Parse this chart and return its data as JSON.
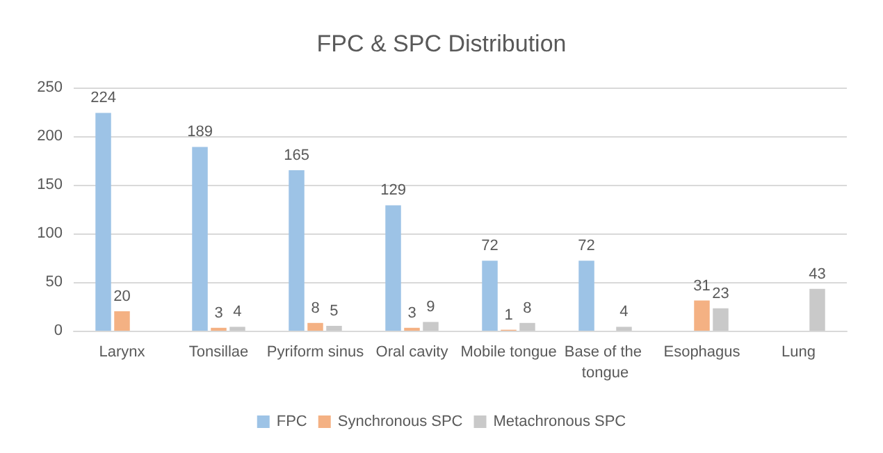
{
  "chart_data": {
    "type": "bar",
    "title": "FPC & SPC Distribution",
    "categories": [
      "Larynx",
      "Tonsillae",
      "Pyriform sinus",
      "Oral cavity",
      "Mobile tongue",
      "Base of the tongue",
      "Esophagus",
      "Lung"
    ],
    "series": [
      {
        "name": "FPC",
        "color": "#9dc3e6",
        "values": [
          224,
          189,
          165,
          129,
          72,
          72,
          null,
          null
        ]
      },
      {
        "name": "Synchronous SPC",
        "color": "#f4b183",
        "values": [
          20,
          3,
          8,
          3,
          1,
          null,
          31,
          null
        ]
      },
      {
        "name": "Metachronous SPC",
        "color": "#c9c9c9",
        "values": [
          null,
          4,
          5,
          9,
          8,
          4,
          23,
          43
        ]
      }
    ],
    "ylim": [
      0,
      250
    ],
    "yticks": [
      0,
      50,
      100,
      150,
      200,
      250
    ],
    "grid": "y",
    "legend": "bottom",
    "data_labels": true
  }
}
